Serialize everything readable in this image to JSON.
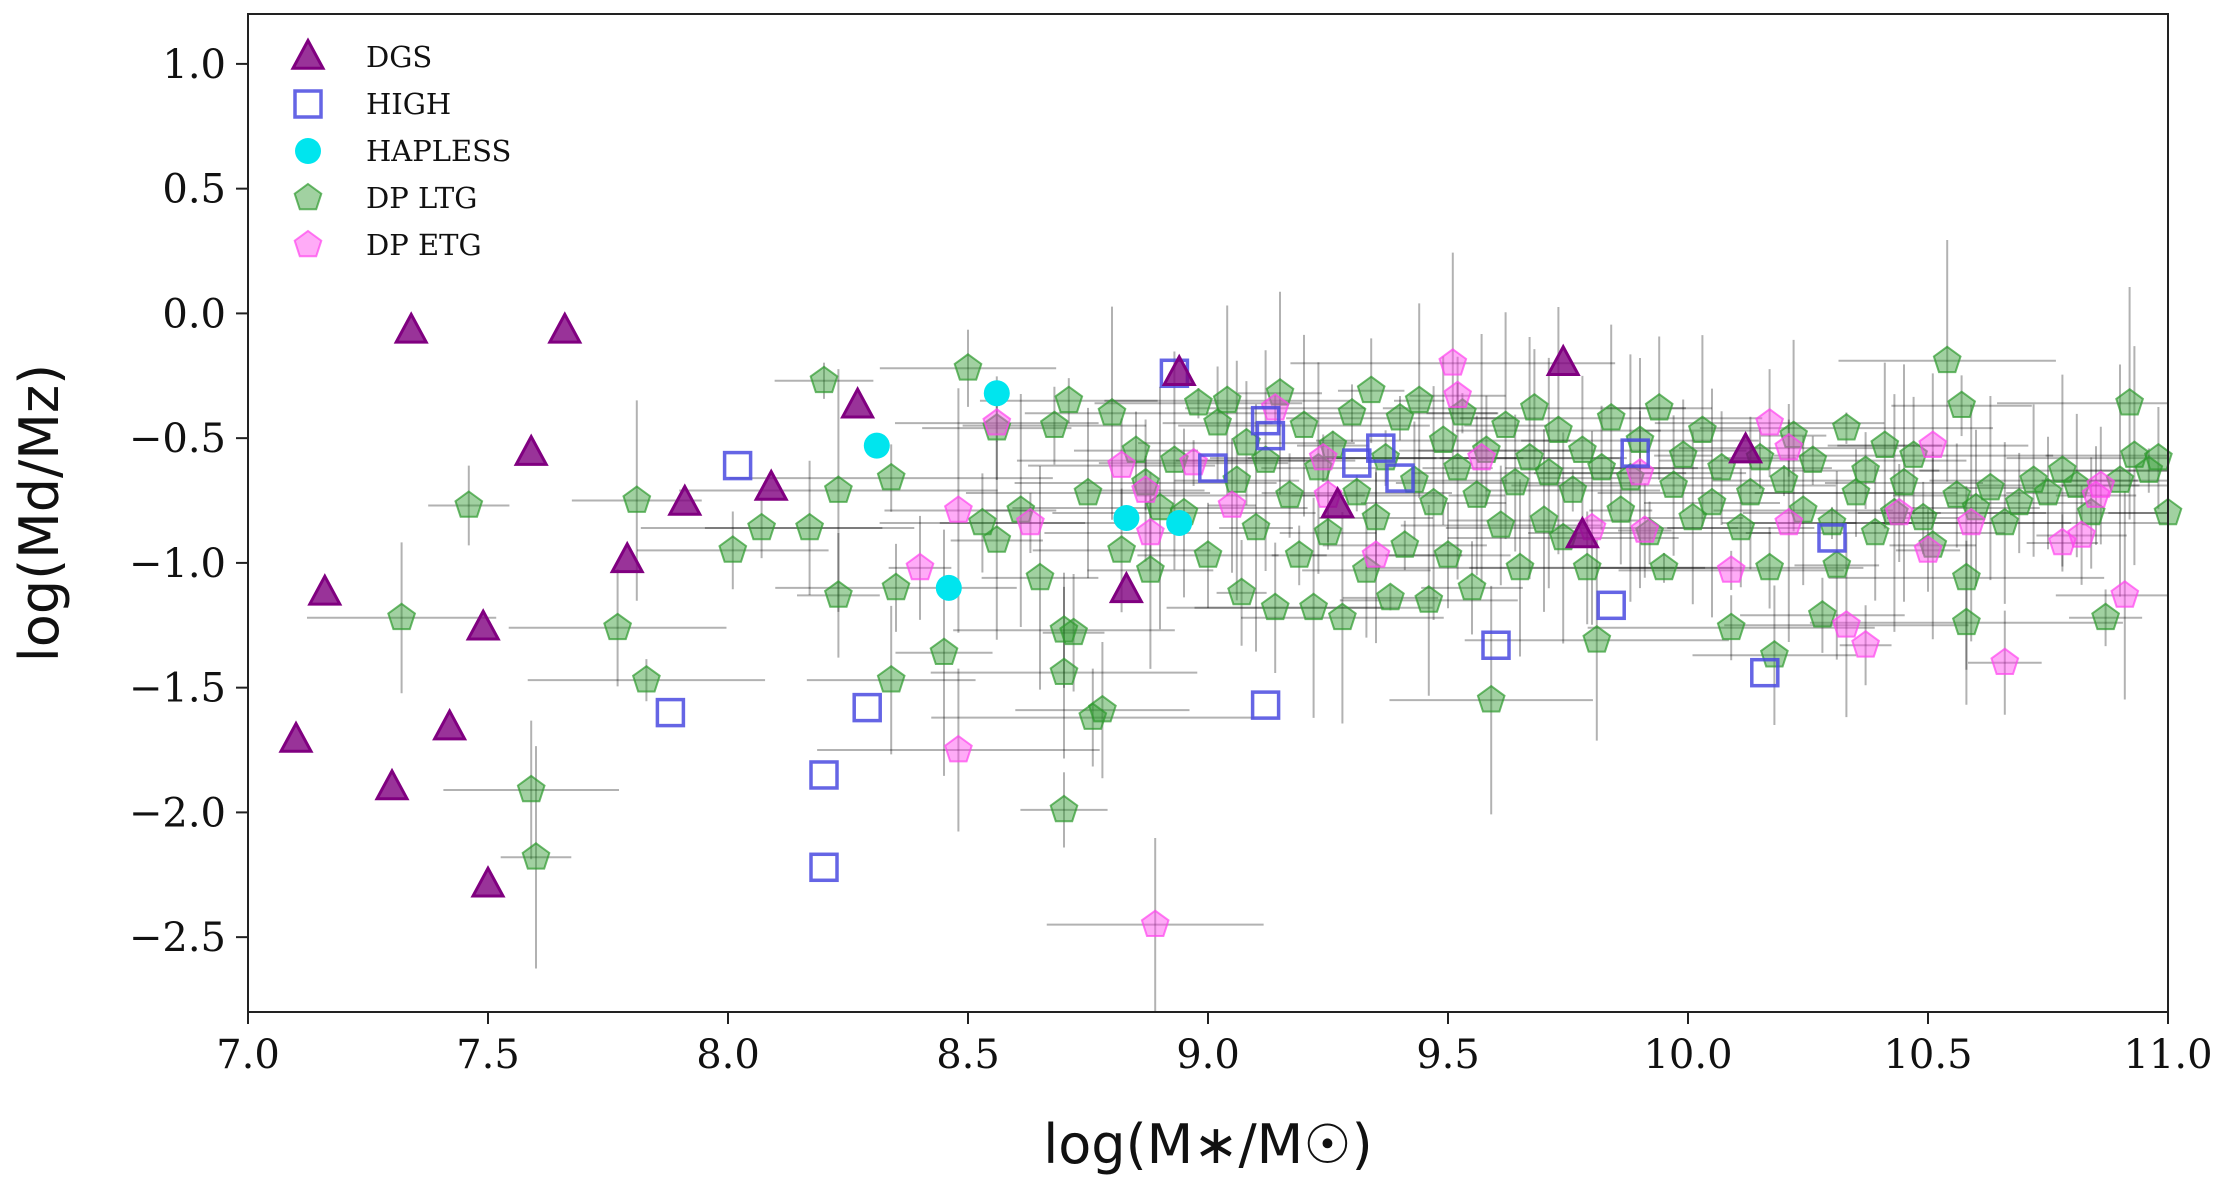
{
  "chart_data": {
    "type": "scatter",
    "title": "",
    "xlabel": "log(M∗/M☉)",
    "ylabel": "log(Md/Mz)",
    "xlim": [
      7.0,
      11.0
    ],
    "ylim": [
      -2.8,
      1.2
    ],
    "xticks": [
      "7.0",
      "7.5",
      "8.0",
      "8.5",
      "9.0",
      "9.5",
      "10.0",
      "10.5",
      "11.0"
    ],
    "yticks": [
      "1.0",
      "0.5",
      "0.0",
      "−0.5",
      "−1.0",
      "−1.5",
      "−2.0",
      "−2.5"
    ],
    "grid": false,
    "legend_position": "top-left",
    "series": [
      {
        "name": "DGS",
        "marker": "triangle",
        "color": "#800080",
        "points": [
          [
            7.1,
            -1.71
          ],
          [
            7.16,
            -1.12
          ],
          [
            7.3,
            -1.9
          ],
          [
            7.34,
            -0.07
          ],
          [
            7.42,
            -1.66
          ],
          [
            7.49,
            -1.26
          ],
          [
            7.5,
            -2.29
          ],
          [
            7.59,
            -0.56
          ],
          [
            7.66,
            -0.07
          ],
          [
            7.79,
            -0.99
          ],
          [
            7.91,
            -0.76
          ],
          [
            8.09,
            -0.7
          ],
          [
            8.27,
            -0.37
          ],
          [
            8.83,
            -1.11
          ],
          [
            8.94,
            -0.24
          ],
          [
            9.27,
            -0.77
          ],
          [
            9.74,
            -0.2
          ],
          [
            9.78,
            -0.89
          ],
          [
            10.12,
            -0.55
          ]
        ]
      },
      {
        "name": "HIGH",
        "marker": "square",
        "color": "#4a4ae0",
        "points": [
          [
            7.88,
            -1.6
          ],
          [
            8.02,
            -0.61
          ],
          [
            8.2,
            -1.85
          ],
          [
            8.2,
            -2.22
          ],
          [
            8.29,
            -1.58
          ],
          [
            8.93,
            -0.24
          ],
          [
            9.01,
            -0.62
          ],
          [
            9.12,
            -0.43
          ],
          [
            9.13,
            -0.49
          ],
          [
            9.12,
            -1.57
          ],
          [
            9.31,
            -0.6
          ],
          [
            9.36,
            -0.54
          ],
          [
            9.4,
            -0.66
          ],
          [
            9.6,
            -1.33
          ],
          [
            9.84,
            -1.17
          ],
          [
            9.89,
            -0.56
          ],
          [
            10.16,
            -1.44
          ],
          [
            10.3,
            -0.9
          ]
        ]
      },
      {
        "name": "HAPLESS",
        "marker": "circle",
        "color": "#00e5ee",
        "points": [
          [
            8.31,
            -0.53
          ],
          [
            8.46,
            -1.1
          ],
          [
            8.56,
            -0.32
          ],
          [
            8.83,
            -0.82
          ],
          [
            8.94,
            -0.84
          ]
        ]
      },
      {
        "name": "DP LTG",
        "marker": "pentagon",
        "color": "#2e9a2e",
        "points": [
          [
            7.32,
            -1.22
          ],
          [
            7.46,
            -0.77
          ],
          [
            7.59,
            -1.91
          ],
          [
            7.6,
            -2.18
          ],
          [
            7.77,
            -1.26
          ],
          [
            7.81,
            -0.75
          ],
          [
            7.83,
            -1.47
          ],
          [
            8.01,
            -0.95
          ],
          [
            8.07,
            -0.86
          ],
          [
            8.17,
            -0.86
          ],
          [
            8.2,
            -0.27
          ],
          [
            8.23,
            -0.71
          ],
          [
            8.23,
            -1.13
          ],
          [
            8.34,
            -0.66
          ],
          [
            8.34,
            -1.47
          ],
          [
            8.35,
            -1.1
          ],
          [
            8.45,
            -1.36
          ],
          [
            8.5,
            -0.22
          ],
          [
            8.53,
            -0.84
          ],
          [
            8.56,
            -0.91
          ],
          [
            8.56,
            -0.46
          ],
          [
            8.61,
            -0.79
          ],
          [
            8.65,
            -1.06
          ],
          [
            8.68,
            -0.45
          ],
          [
            8.7,
            -1.27
          ],
          [
            8.7,
            -1.44
          ],
          [
            8.7,
            -1.99
          ],
          [
            8.71,
            -0.35
          ],
          [
            8.72,
            -1.28
          ],
          [
            8.75,
            -0.72
          ],
          [
            8.76,
            -1.62
          ],
          [
            8.78,
            -1.59
          ],
          [
            8.8,
            -0.4
          ],
          [
            8.82,
            -0.95
          ],
          [
            8.85,
            -0.55
          ],
          [
            8.87,
            -0.68
          ],
          [
            8.88,
            -1.03
          ],
          [
            8.9,
            -0.78
          ],
          [
            8.93,
            -0.59
          ],
          [
            8.95,
            -0.8
          ],
          [
            8.98,
            -0.36
          ],
          [
            9.0,
            -0.97
          ],
          [
            9.02,
            -0.44
          ],
          [
            9.04,
            -0.35
          ],
          [
            9.06,
            -0.67
          ],
          [
            9.07,
            -1.12
          ],
          [
            9.08,
            -0.52
          ],
          [
            9.1,
            -0.86
          ],
          [
            9.12,
            -0.59
          ],
          [
            9.14,
            -1.18
          ],
          [
            9.15,
            -0.32
          ],
          [
            9.17,
            -0.73
          ],
          [
            9.19,
            -0.97
          ],
          [
            9.2,
            -0.45
          ],
          [
            9.22,
            -1.18
          ],
          [
            9.23,
            -0.62
          ],
          [
            9.25,
            -0.88
          ],
          [
            9.26,
            -0.53
          ],
          [
            9.28,
            -1.22
          ],
          [
            9.3,
            -0.4
          ],
          [
            9.31,
            -0.72
          ],
          [
            9.33,
            -1.03
          ],
          [
            9.34,
            -0.31
          ],
          [
            9.35,
            -0.82
          ],
          [
            9.37,
            -0.58
          ],
          [
            9.38,
            -1.14
          ],
          [
            9.4,
            -0.42
          ],
          [
            9.41,
            -0.93
          ],
          [
            9.43,
            -0.67
          ],
          [
            9.44,
            -0.35
          ],
          [
            9.46,
            -1.15
          ],
          [
            9.47,
            -0.76
          ],
          [
            9.49,
            -0.51
          ],
          [
            9.5,
            -0.97
          ],
          [
            9.52,
            -0.62
          ],
          [
            9.53,
            -0.4
          ],
          [
            9.55,
            -1.1
          ],
          [
            9.56,
            -0.73
          ],
          [
            9.58,
            -0.55
          ],
          [
            9.59,
            -1.55
          ],
          [
            9.61,
            -0.85
          ],
          [
            9.62,
            -0.45
          ],
          [
            9.64,
            -0.68
          ],
          [
            9.65,
            -1.02
          ],
          [
            9.67,
            -0.58
          ],
          [
            9.68,
            -0.38
          ],
          [
            9.7,
            -0.83
          ],
          [
            9.71,
            -0.64
          ],
          [
            9.73,
            -0.47
          ],
          [
            9.74,
            -0.9
          ],
          [
            9.76,
            -0.71
          ],
          [
            9.78,
            -0.55
          ],
          [
            9.79,
            -1.02
          ],
          [
            9.81,
            -1.31
          ],
          [
            9.82,
            -0.62
          ],
          [
            9.84,
            -0.42
          ],
          [
            9.86,
            -0.79
          ],
          [
            9.88,
            -0.66
          ],
          [
            9.9,
            -0.51
          ],
          [
            9.92,
            -0.88
          ],
          [
            9.94,
            -0.38
          ],
          [
            9.95,
            -1.02
          ],
          [
            9.97,
            -0.69
          ],
          [
            9.99,
            -0.57
          ],
          [
            10.01,
            -0.82
          ],
          [
            10.03,
            -0.47
          ],
          [
            10.05,
            -0.76
          ],
          [
            10.07,
            -0.62
          ],
          [
            10.09,
            -1.26
          ],
          [
            10.11,
            -0.86
          ],
          [
            10.13,
            -0.72
          ],
          [
            10.15,
            -0.58
          ],
          [
            10.17,
            -1.02
          ],
          [
            10.18,
            -1.37
          ],
          [
            10.2,
            -0.67
          ],
          [
            10.22,
            -0.49
          ],
          [
            10.24,
            -0.79
          ],
          [
            10.26,
            -0.59
          ],
          [
            10.28,
            -1.21
          ],
          [
            10.3,
            -0.84
          ],
          [
            10.31,
            -1.01
          ],
          [
            10.33,
            -0.46
          ],
          [
            10.35,
            -0.72
          ],
          [
            10.37,
            -0.63
          ],
          [
            10.39,
            -0.88
          ],
          [
            10.41,
            -0.53
          ],
          [
            10.43,
            -0.8
          ],
          [
            10.45,
            -0.68
          ],
          [
            10.47,
            -0.57
          ],
          [
            10.49,
            -0.82
          ],
          [
            10.51,
            -0.93
          ],
          [
            10.54,
            -0.19
          ],
          [
            10.56,
            -0.73
          ],
          [
            10.57,
            -0.37
          ],
          [
            10.58,
            -1.24
          ],
          [
            10.58,
            -1.06
          ],
          [
            10.6,
            -0.78
          ],
          [
            10.63,
            -0.7
          ],
          [
            10.66,
            -0.84
          ],
          [
            10.69,
            -0.76
          ],
          [
            10.72,
            -0.67
          ],
          [
            10.75,
            -0.72
          ],
          [
            10.78,
            -0.63
          ],
          [
            10.81,
            -0.69
          ],
          [
            10.84,
            -0.8
          ],
          [
            10.87,
            -1.22
          ],
          [
            10.9,
            -0.67
          ],
          [
            10.92,
            -0.36
          ],
          [
            10.93,
            -0.57
          ],
          [
            10.96,
            -0.63
          ],
          [
            10.98,
            -0.58
          ],
          [
            11.0,
            -0.8
          ]
        ]
      },
      {
        "name": "DP ETG",
        "marker": "pentagon",
        "color": "#ff44ee",
        "points": [
          [
            8.4,
            -1.02
          ],
          [
            8.48,
            -0.79
          ],
          [
            8.48,
            -1.75
          ],
          [
            8.56,
            -0.44
          ],
          [
            8.63,
            -0.84
          ],
          [
            8.82,
            -0.61
          ],
          [
            8.87,
            -0.71
          ],
          [
            8.88,
            -0.88
          ],
          [
            8.89,
            -2.45
          ],
          [
            8.97,
            -0.6
          ],
          [
            9.05,
            -0.77
          ],
          [
            9.14,
            -0.38
          ],
          [
            9.24,
            -0.58
          ],
          [
            9.25,
            -0.73
          ],
          [
            9.35,
            -0.97
          ],
          [
            9.51,
            -0.2
          ],
          [
            9.52,
            -0.33
          ],
          [
            9.57,
            -0.58
          ],
          [
            9.8,
            -0.86
          ],
          [
            9.9,
            -0.64
          ],
          [
            9.91,
            -0.87
          ],
          [
            10.09,
            -1.03
          ],
          [
            10.17,
            -0.44
          ],
          [
            10.21,
            -0.84
          ],
          [
            10.21,
            -0.54
          ],
          [
            10.33,
            -1.25
          ],
          [
            10.37,
            -1.33
          ],
          [
            10.44,
            -0.8
          ],
          [
            10.5,
            -0.95
          ],
          [
            10.51,
            -0.53
          ],
          [
            10.59,
            -0.84
          ],
          [
            10.66,
            -1.4
          ],
          [
            10.78,
            -0.92
          ],
          [
            10.82,
            -0.89
          ],
          [
            10.85,
            -0.73
          ],
          [
            10.86,
            -0.69
          ],
          [
            10.91,
            -1.13
          ]
        ]
      }
    ]
  }
}
